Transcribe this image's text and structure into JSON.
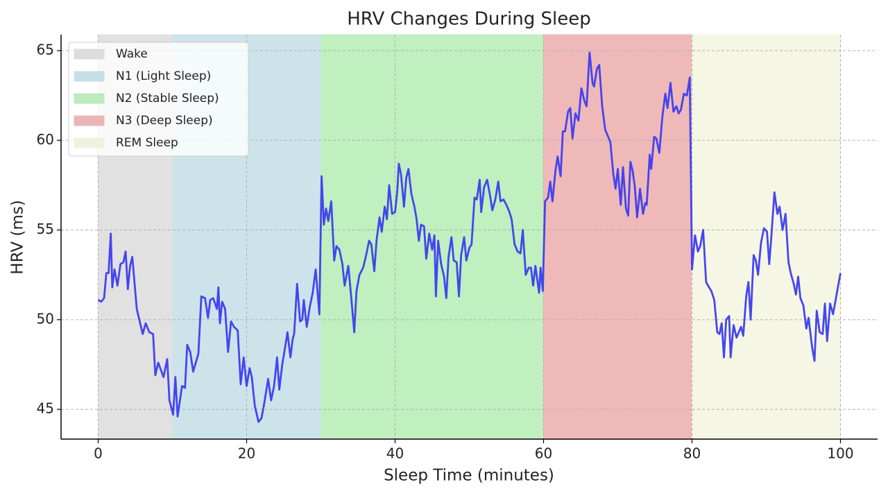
{
  "chart_data": {
    "type": "line",
    "title": "HRV Changes During Sleep",
    "xlabel": "Sleep Time (minutes)",
    "ylabel": "HRV (ms)",
    "xlim": [
      -5,
      105
    ],
    "xticks": [
      0,
      20,
      40,
      60,
      80,
      100
    ],
    "ylim": [
      43.34,
      65.89
    ],
    "yticks": [
      45,
      50,
      55,
      60,
      65
    ],
    "grid": true,
    "legend": "upper left",
    "color": "#3c3cf0",
    "spans": [
      {
        "name": "Wake",
        "start": 0,
        "end": 10,
        "color": "#e8e8e8"
      },
      {
        "name": "N1 (Light Sleep)",
        "start": 10,
        "end": 30,
        "color": "#d3eaf1"
      },
      {
        "name": "N2 (Stable Sleep)",
        "start": 30,
        "end": 60,
        "color": "#c6f6c6"
      },
      {
        "name": "N3 (Deep Sleep)",
        "start": 60,
        "end": 80,
        "color": "#f6bfbf"
      },
      {
        "name": "REM Sleep",
        "start": 80,
        "end": 100,
        "color": "#fefeec"
      }
    ],
    "x": [
      0,
      0.4,
      0.8,
      1.1,
      1.4,
      1.7,
      1.9,
      2.2,
      2.6,
      3.0,
      3.4,
      3.7,
      4.0,
      4.3,
      4.6,
      5.2,
      6.0,
      6.4,
      6.9,
      7.4,
      7.7,
      8.1,
      8.8,
      9.3,
      9.6,
      10.1,
      10.4,
      10.7,
      11.3,
      11.7,
      12.0,
      12.4,
      12.8,
      13.5,
      13.9,
      14.4,
      14.8,
      15.1,
      15.5,
      16.0,
      16.2,
      16.4,
      16.7,
      17.1,
      17.5,
      17.9,
      18.3,
      18.8,
      19.2,
      19.6,
      20.0,
      20.4,
      20.7,
      21.1,
      21.6,
      22.0,
      22.4,
      22.9,
      23.3,
      23.7,
      24.1,
      24.4,
      24.8,
      25.2,
      25.5,
      25.9,
      26.2,
      26.4,
      26.8,
      27.2,
      27.5,
      27.7,
      28.1,
      28.5,
      28.9,
      29.3,
      29.8,
      30.1,
      30.4,
      30.7,
      31.0,
      31.4,
      31.8,
      32.1,
      32.5,
      32.9,
      33.2,
      33.7,
      34.1,
      34.5,
      34.8,
      35.2,
      35.7,
      36.1,
      36.5,
      36.8,
      37.2,
      37.5,
      37.9,
      38.2,
      38.6,
      38.9,
      39.2,
      39.6,
      40.0,
      40.3,
      40.5,
      40.8,
      41.2,
      41.5,
      41.8,
      42.2,
      42.6,
      42.9,
      43.2,
      43.5,
      43.9,
      44.2,
      44.6,
      45.0,
      45.3,
      45.5,
      45.8,
      46.2,
      46.6,
      46.9,
      47.2,
      47.6,
      47.9,
      48.3,
      48.6,
      48.9,
      49.3,
      49.6,
      50.0,
      50.3,
      50.7,
      51.0,
      51.4,
      51.6,
      52.0,
      52.4,
      52.8,
      53.1,
      53.5,
      53.9,
      54.2,
      54.6,
      55.0,
      55.4,
      55.7,
      56.1,
      56.5,
      56.9,
      57.2,
      57.6,
      58.0,
      58.3,
      58.6,
      58.9,
      59.4,
      59.6,
      59.9,
      60.2,
      60.6,
      60.9,
      61.2,
      61.6,
      61.9,
      62.3,
      62.6,
      62.9,
      63.3,
      63.6,
      63.9,
      64.3,
      64.7,
      65.1,
      65.5,
      65.8,
      66.2,
      66.6,
      66.8,
      67.2,
      67.5,
      67.9,
      68.3,
      68.6,
      69.0,
      69.4,
      69.7,
      70.0,
      70.4,
      70.7,
      71.1,
      71.4,
      71.7,
      72.0,
      72.3,
      72.6,
      73.0,
      73.4,
      73.7,
      73.9,
      74.3,
      74.5,
      74.9,
      75.2,
      75.6,
      76.0,
      76.4,
      76.7,
      77.1,
      77.5,
      77.9,
      78.2,
      78.5,
      78.9,
      79.3,
      79.7,
      80.0,
      80.4,
      80.8,
      81.1,
      81.5,
      81.9,
      82.3,
      82.6,
      83.0,
      83.4,
      83.7,
      84.0,
      84.3,
      84.6,
      85.0,
      85.2,
      85.6,
      86.0,
      86.3,
      86.6,
      86.9,
      87.3,
      87.6,
      87.9,
      88.3,
      88.6,
      88.9,
      89.3,
      89.7,
      90.1,
      90.4,
      90.7,
      91.1,
      91.5,
      91.8,
      92.2,
      92.6,
      93.0,
      93.3,
      93.7,
      94.0,
      94.3,
      94.6,
      95.0,
      95.4,
      95.7,
      96.2,
      96.5,
      96.8,
      97.2,
      97.6,
      97.9,
      98.2,
      98.6,
      99.0,
      99.3,
      100.0
    ],
    "values": [
      51.1,
      51.0,
      51.2,
      52.6,
      52.6,
      54.8,
      51.8,
      52.8,
      51.9,
      53.1,
      53.2,
      53.8,
      51.7,
      53.0,
      53.5,
      50.6,
      49.2,
      49.8,
      49.3,
      49.2,
      46.9,
      47.6,
      46.8,
      47.8,
      45.5,
      44.7,
      46.8,
      44.6,
      46.3,
      46.2,
      48.6,
      48.2,
      47.1,
      48.1,
      51.3,
      51.2,
      50.1,
      51.1,
      51.2,
      50.6,
      51.8,
      49.8,
      51.0,
      50.6,
      48.2,
      49.9,
      49.6,
      49.4,
      46.4,
      47.9,
      46.3,
      47.3,
      46.8,
      45.2,
      44.3,
      44.5,
      45.4,
      46.7,
      45.5,
      46.3,
      47.9,
      46.1,
      47.5,
      48.5,
      49.3,
      47.9,
      48.9,
      49.2,
      52.0,
      49.9,
      50.0,
      51.1,
      49.6,
      50.7,
      51.5,
      52.8,
      50.3,
      58.0,
      55.3,
      56.2,
      55.5,
      56.6,
      53.3,
      54.1,
      53.9,
      53.1,
      51.9,
      53.0,
      51.2,
      49.3,
      51.6,
      52.5,
      52.9,
      53.6,
      54.4,
      54.2,
      52.7,
      54.4,
      55.7,
      54.9,
      56.3,
      55.6,
      57.5,
      55.9,
      56.0,
      57.2,
      58.7,
      58.1,
      56.3,
      57.9,
      58.4,
      57.0,
      56.3,
      55.6,
      54.4,
      55.3,
      55.2,
      53.4,
      54.8,
      53.9,
      54.7,
      51.3,
      54.4,
      53.1,
      52.4,
      51.2,
      53.5,
      54.6,
      53.3,
      53.2,
      51.3,
      53.6,
      54.6,
      53.3,
      54.0,
      54.2,
      56.8,
      56.7,
      57.8,
      56.0,
      57.4,
      57.8,
      56.9,
      56.1,
      56.7,
      57.7,
      56.6,
      56.7,
      56.4,
      56.0,
      55.6,
      54.2,
      53.8,
      53.7,
      55.0,
      52.5,
      52.9,
      52.9,
      51.9,
      53.0,
      51.5,
      52.9,
      51.6,
      56.6,
      56.8,
      57.7,
      56.6,
      58.3,
      59.1,
      58.0,
      60.5,
      60.5,
      61.6,
      61.8,
      60.1,
      61.5,
      61.1,
      62.9,
      62.2,
      61.9,
      64.9,
      63.2,
      63.0,
      64.0,
      64.2,
      61.9,
      60.6,
      60.3,
      59.9,
      58.1,
      57.3,
      58.4,
      56.4,
      58.5,
      56.2,
      55.8,
      58.8,
      58.3,
      57.4,
      55.7,
      57.3,
      55.9,
      56.5,
      56.4,
      59.2,
      58.4,
      60.2,
      60.1,
      59.3,
      61.3,
      62.6,
      61.8,
      63.2,
      61.6,
      61.9,
      61.5,
      61.7,
      62.6,
      62.5,
      63.5,
      52.8,
      54.7,
      53.8,
      54.1,
      55.0,
      52.1,
      51.8,
      51.6,
      51.1,
      49.3,
      49.2,
      49.8,
      47.9,
      50.0,
      50.2,
      47.9,
      49.7,
      49.0,
      49.3,
      49.6,
      49.1,
      51.3,
      52.1,
      50.0,
      53.6,
      53.3,
      52.5,
      54.3,
      55.1,
      54.9,
      53.1,
      54.7,
      57.1,
      55.9,
      56.3,
      55.0,
      55.9,
      53.2,
      52.6,
      52.0,
      51.4,
      52.4,
      51.2,
      50.8,
      49.5,
      50.1,
      48.4,
      47.7,
      50.5,
      49.3,
      49.2,
      50.9,
      48.8,
      50.9,
      50.3,
      51.0,
      52.6
    ]
  }
}
